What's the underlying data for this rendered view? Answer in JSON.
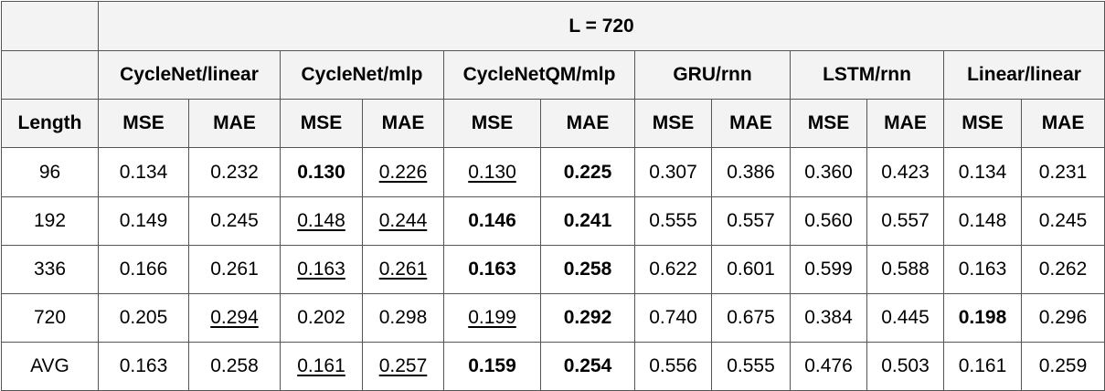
{
  "table": {
    "top_header": "L = 720",
    "models": [
      "CycleNet/linear",
      "CycleNet/mlp",
      "CycleNetQM/mlp",
      "GRU/rnn",
      "LSTM/rnn",
      "Linear/linear"
    ],
    "length_label": "Length",
    "metric_labels": [
      "MSE",
      "MAE"
    ],
    "rows": [
      {
        "length": "96",
        "cells": [
          {
            "v": "0.134"
          },
          {
            "v": "0.232"
          },
          {
            "v": "0.130",
            "bold": true
          },
          {
            "v": "0.226",
            "underline": true
          },
          {
            "v": "0.130",
            "underline": true
          },
          {
            "v": "0.225",
            "bold": true
          },
          {
            "v": "0.307"
          },
          {
            "v": "0.386"
          },
          {
            "v": "0.360"
          },
          {
            "v": "0.423"
          },
          {
            "v": "0.134"
          },
          {
            "v": "0.231"
          }
        ]
      },
      {
        "length": "192",
        "cells": [
          {
            "v": "0.149"
          },
          {
            "v": "0.245"
          },
          {
            "v": "0.148",
            "underline": true
          },
          {
            "v": "0.244",
            "underline": true
          },
          {
            "v": "0.146",
            "bold": true
          },
          {
            "v": "0.241",
            "bold": true
          },
          {
            "v": "0.555"
          },
          {
            "v": "0.557"
          },
          {
            "v": "0.560"
          },
          {
            "v": "0.557"
          },
          {
            "v": "0.148"
          },
          {
            "v": "0.245"
          }
        ]
      },
      {
        "length": "336",
        "cells": [
          {
            "v": "0.166"
          },
          {
            "v": "0.261"
          },
          {
            "v": "0.163",
            "underline": true
          },
          {
            "v": "0.261",
            "underline": true
          },
          {
            "v": "0.163",
            "bold": true
          },
          {
            "v": "0.258",
            "bold": true
          },
          {
            "v": "0.622"
          },
          {
            "v": "0.601"
          },
          {
            "v": "0.599"
          },
          {
            "v": "0.588"
          },
          {
            "v": "0.163"
          },
          {
            "v": "0.262"
          }
        ]
      },
      {
        "length": "720",
        "cells": [
          {
            "v": "0.205"
          },
          {
            "v": "0.294",
            "underline": true
          },
          {
            "v": "0.202"
          },
          {
            "v": "0.298"
          },
          {
            "v": "0.199",
            "underline": true
          },
          {
            "v": "0.292",
            "bold": true
          },
          {
            "v": "0.740"
          },
          {
            "v": "0.675"
          },
          {
            "v": "0.384"
          },
          {
            "v": "0.445"
          },
          {
            "v": "0.198",
            "bold": true
          },
          {
            "v": "0.296"
          }
        ]
      },
      {
        "length": "AVG",
        "cells": [
          {
            "v": "0.163"
          },
          {
            "v": "0.258"
          },
          {
            "v": "0.161",
            "underline": true
          },
          {
            "v": "0.257",
            "underline": true
          },
          {
            "v": "0.159",
            "bold": true
          },
          {
            "v": "0.254",
            "bold": true
          },
          {
            "v": "0.556"
          },
          {
            "v": "0.555"
          },
          {
            "v": "0.476"
          },
          {
            "v": "0.503"
          },
          {
            "v": "0.161"
          },
          {
            "v": "0.259"
          }
        ]
      }
    ],
    "colors": {
      "header_bg": "#f3f3f3",
      "body_bg": "#ffffff",
      "border": "#555555"
    }
  }
}
